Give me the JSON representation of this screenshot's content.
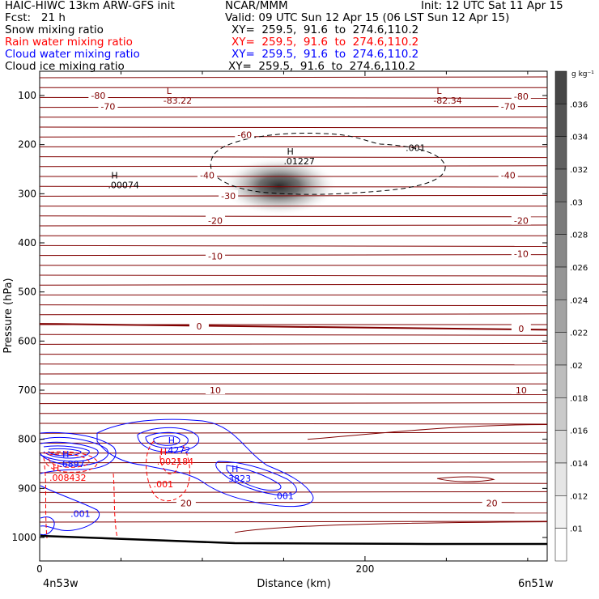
{
  "header": {
    "title_left": "HAIC-HIWC 13km ARW-GFS init",
    "org": "NCAR/MMM",
    "init": "Init: 12 UTC Sat 11 Apr 15",
    "fcst": "Fcst:   21 h",
    "valid": "Valid: 09 UTC Sun 12 Apr 15 (06 LST Sun 12 Apr 15)"
  },
  "legend_rows": [
    {
      "label": "Snow mixing ratio",
      "xy": "XY=  259.5,  91.6  to  274.6,110.2",
      "color": "#000000"
    },
    {
      "label": "Rain water mixing ratio",
      "xy": "XY=  259.5,  91.6  to  274.6,110.2",
      "color": "#ff0000"
    },
    {
      "label": "Cloud water mixing ratio",
      "xy": "XY=  259.5,  91.6  to  274.6,110.2",
      "color": "#0000ff"
    },
    {
      "label": "Cloud ice mixing ratio",
      "xy": "XY=  259.5,  91.6  to  274.6,110.2",
      "color": "#000000"
    }
  ],
  "chart_data": {
    "type": "cross-section",
    "xlabel": "Distance (km)",
    "ylabel": "Pressure (hPa)",
    "xlim": [
      0,
      312
    ],
    "ylim": [
      1050,
      70
    ],
    "x_ticks": [
      0,
      200
    ],
    "y_ticks": [
      100,
      200,
      300,
      400,
      500,
      600,
      700,
      800,
      900,
      1000
    ],
    "endpoint_labels": {
      "left": "4n53w",
      "right": "6n51w"
    },
    "colorbar": {
      "unit": "g kg⁻¹",
      "ticks": [
        ".036",
        ".034",
        ".032",
        ".03",
        ".028",
        ".026",
        ".024",
        ".022",
        ".02",
        ".018",
        ".016",
        ".014",
        ".012",
        ".01"
      ]
    },
    "temperature_labels": [
      {
        "text": "-80",
        "x": 36,
        "p": 100
      },
      {
        "text": "-80",
        "x": 296,
        "p": 102
      },
      {
        "text": "-70",
        "x": 42,
        "p": 122
      },
      {
        "text": "-70",
        "x": 288,
        "p": 122
      },
      {
        "text": "-60",
        "x": 126,
        "p": 180
      },
      {
        "text": "-40",
        "x": 103,
        "p": 262
      },
      {
        "text": "-40",
        "x": 288,
        "p": 262
      },
      {
        "text": "-30",
        "x": 116,
        "p": 304
      },
      {
        "text": "-20",
        "x": 108,
        "p": 355
      },
      {
        "text": "-20",
        "x": 296,
        "p": 355
      },
      {
        "text": "-10",
        "x": 108,
        "p": 427
      },
      {
        "text": "-10",
        "x": 296,
        "p": 422
      },
      {
        "text": "0",
        "x": 98,
        "p": 570
      },
      {
        "text": "0",
        "x": 296,
        "p": 575
      },
      {
        "text": "10",
        "x": 108,
        "p": 700
      },
      {
        "text": "10",
        "x": 296,
        "p": 700
      },
      {
        "text": "20",
        "x": 90,
        "p": 930
      },
      {
        "text": "20",
        "x": 278,
        "p": 930
      }
    ],
    "extrema_labels": [
      {
        "kind": "L",
        "value": "-83.22",
        "x": 76,
        "p": 100,
        "color": "#800000"
      },
      {
        "kind": "L",
        "value": "-82.34",
        "x": 242,
        "p": 100,
        "color": "#800000"
      },
      {
        "kind": "H",
        "value": ".00074",
        "x": 42,
        "p": 272,
        "color": "#000000"
      },
      {
        "kind": "H",
        "value": ".01227",
        "x": 150,
        "p": 224,
        "color": "#000000"
      },
      {
        "kind": "H",
        "value": ".6897",
        "x": 12,
        "p": 840,
        "color": "#0000ff"
      },
      {
        "kind": "H",
        "value": ".008432",
        "x": 6,
        "p": 868,
        "color": "#ff0000"
      },
      {
        "kind": "H",
        "value": ".4272",
        "x": 77,
        "p": 812,
        "color": "#0000ff"
      },
      {
        "kind": "H",
        "value": ".002184",
        "x": 72,
        "p": 835,
        "color": "#ff0000"
      },
      {
        "kind": "H",
        "value": "3823",
        "x": 116,
        "p": 870,
        "color": "#0000ff"
      }
    ],
    "contour_value_labels": [
      {
        "text": ".001",
        "x": 225,
        "p": 213,
        "color": "#000000"
      },
      {
        "text": ".001",
        "x": 70,
        "p": 898,
        "color": "#ff0000"
      },
      {
        "text": ".001",
        "x": 19,
        "p": 958,
        "color": "#0000ff"
      },
      {
        "text": ".001",
        "x": 144,
        "p": 922,
        "color": "#0000ff"
      }
    ]
  }
}
